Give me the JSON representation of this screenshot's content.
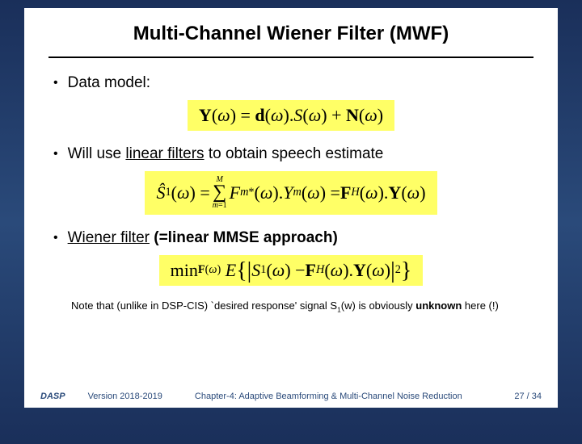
{
  "title": "Multi-Channel Wiener Filter (MWF)",
  "bullets": {
    "b1_prefix": "Data model:",
    "b2_prefix": "Will use ",
    "b2_underline": "linear filters",
    "b2_suffix": " to obtain speech estimate",
    "b3_underline": "Wiener filter",
    "b3_suffix": "  (=linear MMSE approach)"
  },
  "equations": {
    "eq1": "Y(ω) = d(ω).S(ω) + N(ω)",
    "eq2": "Ŝ1(ω) = Σ Fm*(ω).Ym(ω) = F^H(ω).Y(ω)",
    "eq3": "min_F(ω) E{ |S1(ω) − F^H(ω).Y(ω)|² }",
    "eq_bg": "#ffff66"
  },
  "note_prefix": "Note that (unlike in DSP-CIS) `desired response' signal S",
  "note_sub": "1",
  "note_mid": "(w) is obviously ",
  "note_bold": "unknown",
  "note_suffix": " here (!)",
  "footer": {
    "brand": "DASP",
    "version": "Version 2018-2019",
    "chapter": "Chapter-4: Adaptive Beamforming & Multi-Channel Noise Reduction",
    "page": "27 / 34"
  },
  "colors": {
    "slide_bg": "#ffffff",
    "frame_bg_top": "#1a2f5a",
    "frame_bg_mid": "#2a4a7a",
    "eq_highlight": "#ffff66",
    "text": "#000000",
    "footer_text": "#2a4a7a"
  }
}
